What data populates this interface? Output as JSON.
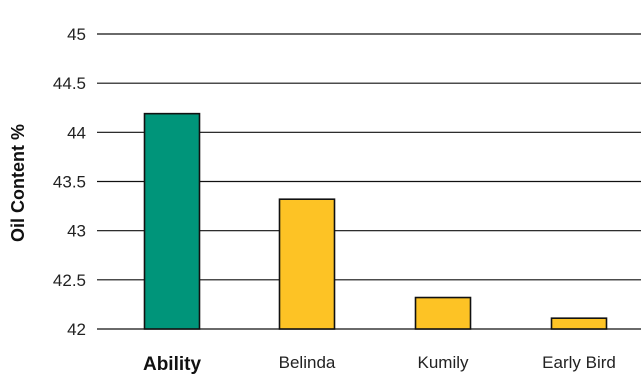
{
  "chart_data": {
    "type": "bar",
    "title": "",
    "xlabel": "",
    "ylabel": "Oil Content %",
    "ylim": [
      42,
      45
    ],
    "y_ticks": [
      42,
      42.5,
      43,
      43.5,
      44,
      44.5,
      45
    ],
    "y_tick_labels": [
      "42",
      "42.5",
      "43",
      "43.5",
      "44",
      "44.5",
      "45"
    ],
    "grid": true,
    "categories": [
      "Ability",
      "Belinda",
      "Kumily",
      "Early Bird"
    ],
    "values": [
      44.19,
      43.32,
      42.32,
      42.11
    ],
    "highlight_category": "Ability",
    "colors": {
      "highlight": "#00957a",
      "default": "#fdc325",
      "outline": "#111111",
      "grid": "#111111"
    }
  }
}
